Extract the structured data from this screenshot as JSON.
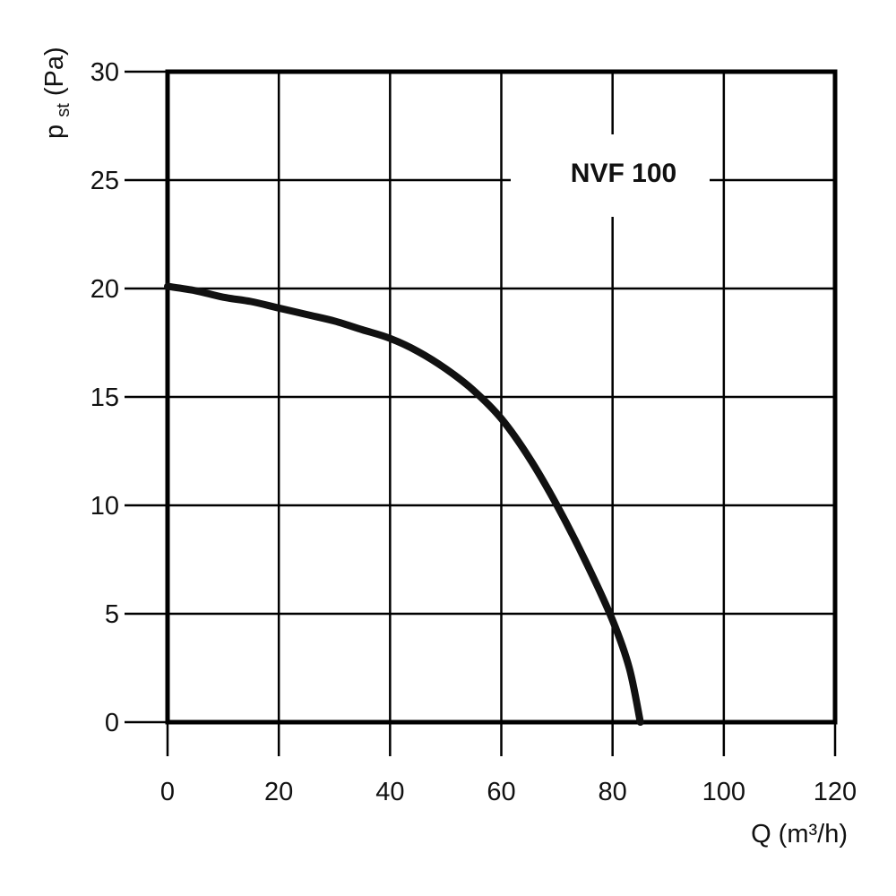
{
  "chart_data": {
    "type": "line",
    "title": "",
    "xlabel": "Q (m³/h)",
    "ylabel_main": "p",
    "ylabel_sub": "st",
    "ylabel_unit": "(Pa)",
    "xlim": [
      0,
      120
    ],
    "ylim": [
      0,
      30
    ],
    "x_ticks": [
      "0",
      "20",
      "40",
      "60",
      "80",
      "100",
      "120"
    ],
    "y_ticks": [
      "0",
      "5",
      "10",
      "15",
      "20",
      "25",
      "30"
    ],
    "grid": true,
    "series": [
      {
        "name": "NVF 100",
        "x": [
          0,
          5,
          10,
          15,
          20,
          25,
          30,
          35,
          40,
          45,
          50,
          55,
          60,
          65,
          70,
          75,
          80,
          83,
          85
        ],
        "y": [
          20.1,
          19.9,
          19.6,
          19.4,
          19.1,
          18.8,
          18.5,
          18.1,
          17.7,
          17.1,
          16.3,
          15.3,
          14.0,
          12.2,
          10.0,
          7.5,
          4.7,
          2.5,
          0
        ]
      }
    ],
    "annotation": "NVF 100",
    "colors": {
      "line": "#111111",
      "grid": "#000000",
      "background": "#ffffff"
    }
  }
}
